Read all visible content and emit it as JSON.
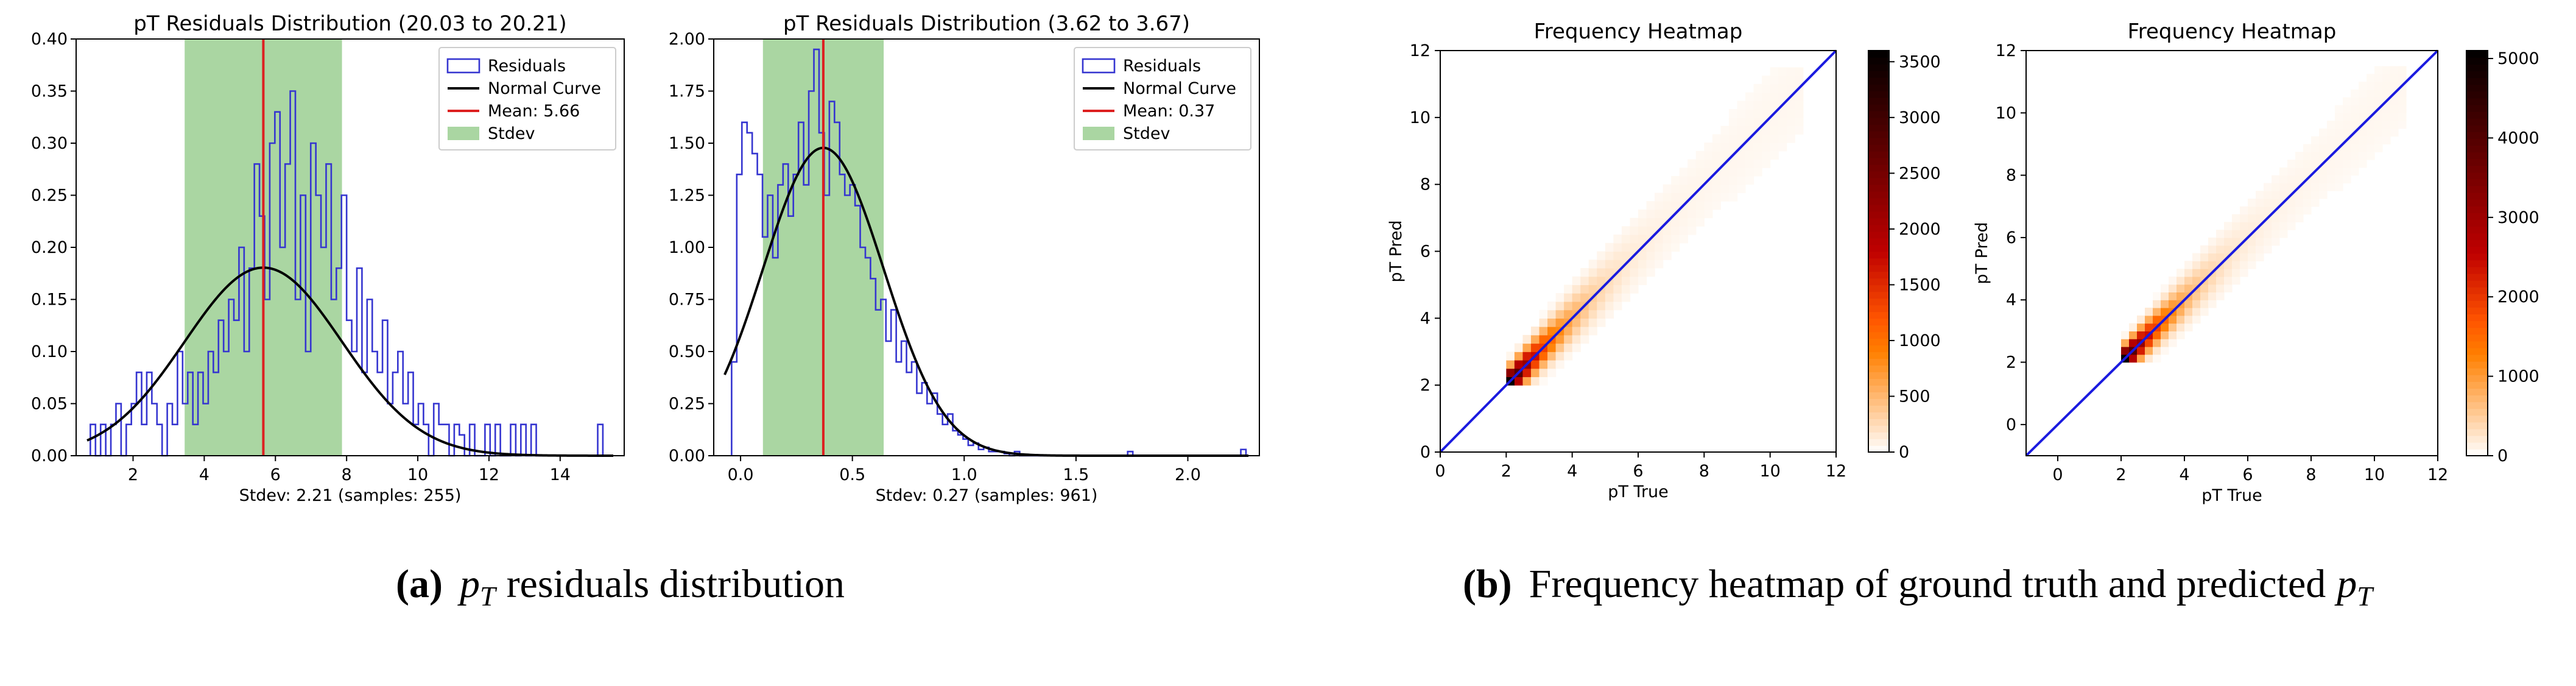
{
  "captions": {
    "a": {
      "label": "(a)",
      "text": "residuals distribution",
      "symbol": "p",
      "sub": "T"
    },
    "b": {
      "label": "(b)",
      "text": "Frequency heatmap of ground truth and predicted",
      "symbol": "p",
      "sub": "T"
    }
  },
  "chart_data": [
    {
      "type": "histogram",
      "title": "pT Residuals Distribution (20.03 to 20.21)",
      "xlabel": "Stdev: 2.21 (samples: 255)",
      "xlim": [
        0.4,
        15.8
      ],
      "ylim": [
        0,
        0.4
      ],
      "xticks": [
        2,
        4,
        6,
        8,
        10,
        12,
        14
      ],
      "yticks": [
        0.0,
        0.05,
        0.1,
        0.15,
        0.2,
        0.25,
        0.3,
        0.35,
        0.4
      ],
      "xtick_labels": [
        "2",
        "4",
        "6",
        "8",
        "10",
        "12",
        "14"
      ],
      "ytick_labels": [
        "0.00",
        "0.05",
        "0.10",
        "0.15",
        "0.20",
        "0.25",
        "0.30",
        "0.35",
        "0.40"
      ],
      "mean": 5.66,
      "stdev": 2.21,
      "bin_edges_range": [
        0.8,
        15.2
      ],
      "bins": 100,
      "densities": [
        0.03,
        0,
        0.03,
        0,
        0.03,
        0.05,
        0,
        0.03,
        0.05,
        0.08,
        0.03,
        0.08,
        0.05,
        0.03,
        0,
        0.05,
        0.03,
        0.1,
        0.05,
        0.08,
        0.03,
        0.08,
        0.05,
        0.1,
        0.08,
        0.13,
        0.1,
        0.15,
        0.13,
        0.2,
        0.1,
        0.18,
        0.28,
        0.23,
        0.15,
        0.3,
        0.33,
        0.2,
        0.28,
        0.35,
        0.15,
        0.25,
        0.1,
        0.3,
        0.25,
        0.2,
        0.28,
        0.15,
        0.18,
        0.25,
        0.13,
        0.1,
        0.18,
        0.08,
        0.15,
        0.1,
        0.08,
        0.13,
        0.05,
        0.08,
        0.1,
        0.05,
        0.08,
        0.03,
        0.05,
        0.03,
        0,
        0.05,
        0.03,
        0.03,
        0,
        0.03,
        0.02,
        0,
        0.03,
        0,
        0,
        0.03,
        0,
        0.03,
        0,
        0,
        0.03,
        0,
        0.03,
        0,
        0.03,
        0,
        0,
        0,
        0,
        0,
        0,
        0,
        0,
        0,
        0,
        0,
        0,
        0.03
      ],
      "legend": {
        "position": "upper-right",
        "entries": [
          {
            "name": "Residuals",
            "style": "hist-outline",
            "color": "#3535d0"
          },
          {
            "name": "Normal Curve",
            "style": "line",
            "color": "#000000"
          },
          {
            "name": "Mean: 5.66",
            "style": "line",
            "color": "#dd2020"
          },
          {
            "name": "Stdev",
            "style": "patch",
            "color": "#aad6a2"
          }
        ]
      }
    },
    {
      "type": "histogram",
      "title": "pT Residuals Distribution (3.62 to 3.67)",
      "xlabel": "Stdev: 0.27 (samples: 961)",
      "xlim": [
        -0.12,
        2.32
      ],
      "ylim": [
        0,
        2.0
      ],
      "xticks": [
        0.0,
        0.5,
        1.0,
        1.5,
        2.0
      ],
      "yticks": [
        0.0,
        0.25,
        0.5,
        0.75,
        1.0,
        1.25,
        1.5,
        1.75,
        2.0
      ],
      "xtick_labels": [
        "0.0",
        "0.5",
        "1.0",
        "1.5",
        "2.0"
      ],
      "ytick_labels": [
        "0.00",
        "0.25",
        "0.50",
        "0.75",
        "1.00",
        "1.25",
        "1.50",
        "1.75",
        "2.00"
      ],
      "mean": 0.37,
      "stdev": 0.27,
      "bin_edges_range": [
        -0.04,
        2.26
      ],
      "bins": 100,
      "densities": [
        0.45,
        1.35,
        1.6,
        1.55,
        1.45,
        1.35,
        1.05,
        1.25,
        0.95,
        1.3,
        1.4,
        1.15,
        1.35,
        1.6,
        1.3,
        1.75,
        1.95,
        1.55,
        1.25,
        1.7,
        1.6,
        1.35,
        1.25,
        1.3,
        1.2,
        1.0,
        0.95,
        0.85,
        0.7,
        0.75,
        0.55,
        0.7,
        0.45,
        0.55,
        0.4,
        0.45,
        0.3,
        0.35,
        0.25,
        0.3,
        0.2,
        0.15,
        0.2,
        0.12,
        0.1,
        0.08,
        0.05,
        0.06,
        0.03,
        0.04,
        0.02,
        0.02,
        0.02,
        0.01,
        0,
        0.02,
        0,
        0,
        0,
        0,
        0,
        0,
        0,
        0,
        0,
        0,
        0,
        0,
        0,
        0,
        0,
        0,
        0,
        0,
        0,
        0,
        0,
        0.02,
        0,
        0,
        0,
        0,
        0,
        0,
        0,
        0,
        0,
        0,
        0,
        0,
        0,
        0,
        0,
        0,
        0,
        0,
        0,
        0,
        0,
        0.03
      ],
      "legend": {
        "position": "upper-right",
        "entries": [
          {
            "name": "Residuals",
            "style": "hist-outline",
            "color": "#3535d0"
          },
          {
            "name": "Normal Curve",
            "style": "line",
            "color": "#000000"
          },
          {
            "name": "Mean: 0.37",
            "style": "line",
            "color": "#dd2020"
          },
          {
            "name": "Stdev",
            "style": "patch",
            "color": "#aad6a2"
          }
        ]
      }
    },
    {
      "type": "heatmap",
      "title": "Frequency Heatmap",
      "xlabel": "pT True",
      "ylabel": "pT Pred",
      "xlim": [
        0,
        12
      ],
      "ylim": [
        0,
        12
      ],
      "xticks": [
        0,
        2,
        4,
        6,
        8,
        10,
        12
      ],
      "yticks": [
        0,
        2,
        4,
        6,
        8,
        10,
        12
      ],
      "colorbar": {
        "min": 0,
        "max": 3600,
        "ticks": [
          0,
          500,
          1000,
          1500,
          2000,
          2500,
          3000,
          3500
        ],
        "colormap": "gist_heat_r"
      },
      "density_model": {
        "x_start": 2.0,
        "x_end": 11.0,
        "peak": 3500,
        "diagonal_color": "#1a1adf"
      }
    },
    {
      "type": "heatmap",
      "title": "Frequency Heatmap",
      "xlabel": "pT True",
      "ylabel": "pT Pred",
      "xlim": [
        -1,
        12
      ],
      "ylim": [
        -1,
        12
      ],
      "xticks": [
        0,
        2,
        4,
        6,
        8,
        10,
        12
      ],
      "yticks": [
        0,
        2,
        4,
        6,
        8,
        10,
        12
      ],
      "colorbar": {
        "min": 0,
        "max": 5100,
        "ticks": [
          0,
          1000,
          2000,
          3000,
          4000,
          5000
        ],
        "colormap": "gist_heat_r"
      },
      "density_model": {
        "x_start": 2.0,
        "x_end": 11.0,
        "peak": 5000,
        "diagonal_color": "#1a1adf"
      }
    }
  ]
}
